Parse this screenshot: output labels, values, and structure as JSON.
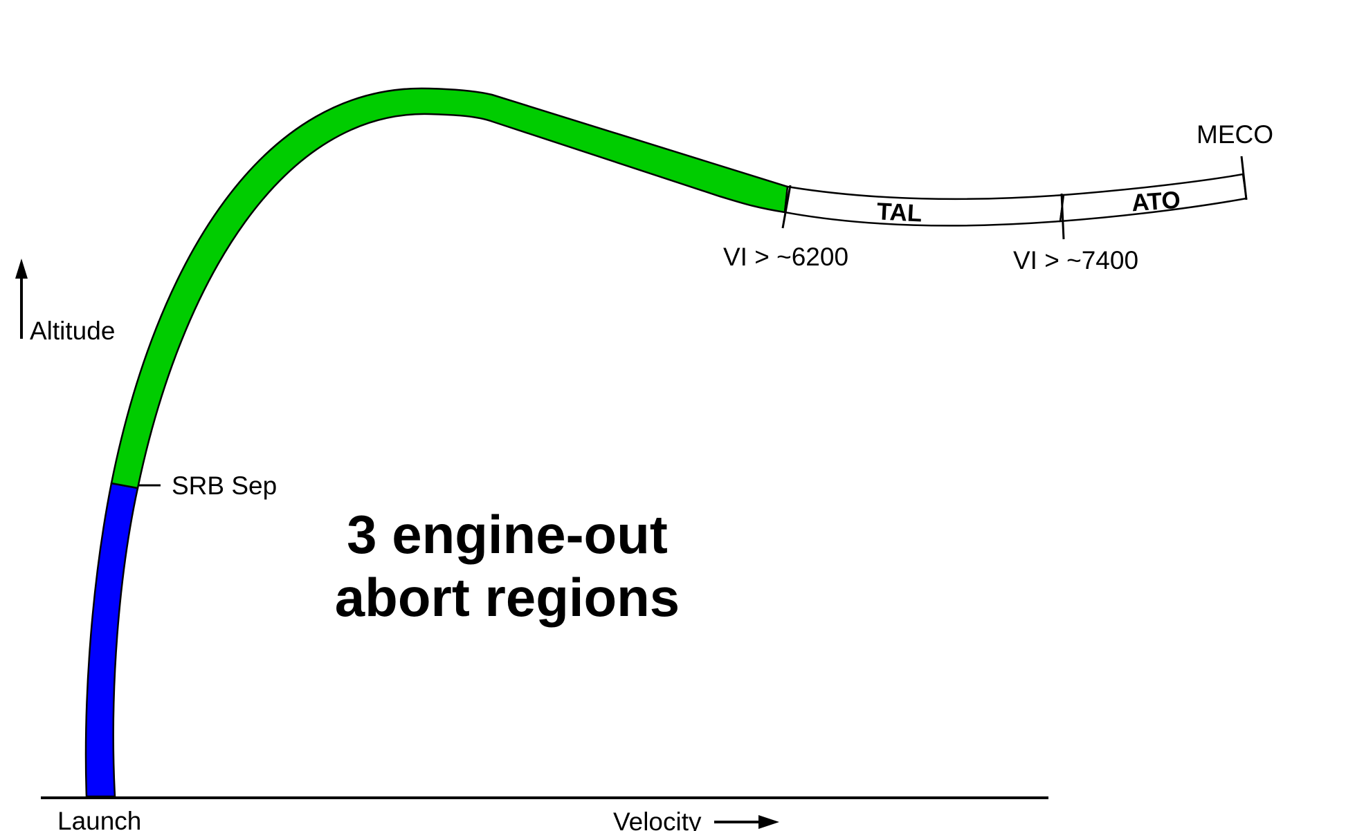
{
  "axes": {
    "y_label": "Altitude",
    "x_label": "Velocity",
    "origin_label": "Launch"
  },
  "trajectory": {
    "srb_sep_label": "SRB Sep",
    "meco_label": "MECO",
    "regions": [
      {
        "id": "boost",
        "label": "",
        "color": "#0000ff"
      },
      {
        "id": "green",
        "label": "",
        "color": "#00cc00"
      },
      {
        "id": "tal",
        "label": "TAL",
        "color": "#ffffff"
      },
      {
        "id": "ato",
        "label": "ATO",
        "color": "#ffffff"
      }
    ],
    "boundaries": [
      {
        "label": "VI > ~6200"
      },
      {
        "label": "VI > ~7400"
      }
    ]
  },
  "title": {
    "line1": "3 engine-out",
    "line2": "abort regions"
  }
}
